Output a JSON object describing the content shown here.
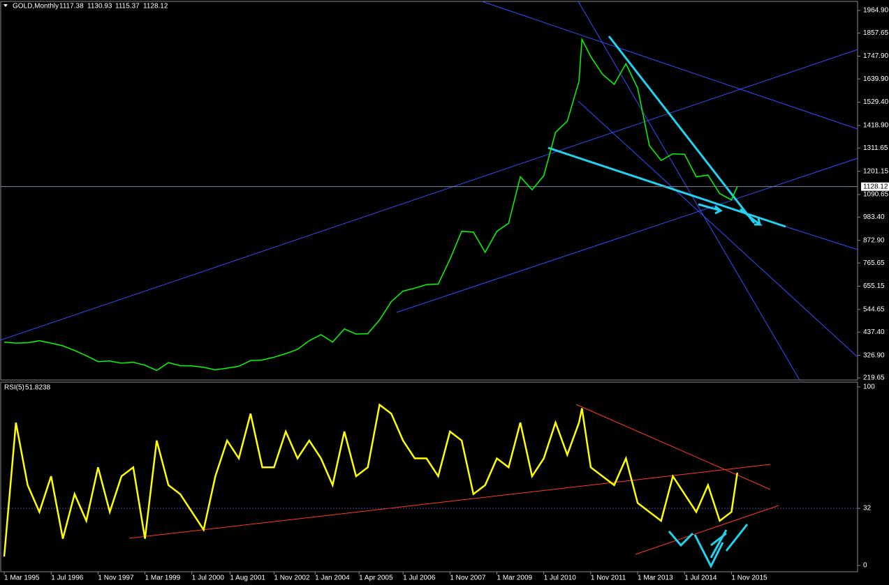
{
  "chart_data": [
    {
      "type": "line",
      "title": "GOLD,Monthly",
      "ohlc": [
        1117.38,
        1130.93,
        1115.37,
        1128.12
      ],
      "last_value": 1128.12,
      "x": [
        0,
        4,
        8,
        12,
        16,
        20,
        24,
        28,
        32,
        36,
        40,
        44,
        48,
        52,
        56,
        60,
        64,
        68,
        72,
        76,
        80,
        84,
        88,
        92,
        96,
        100,
        104,
        108,
        112,
        116,
        120,
        124,
        128,
        132,
        136,
        140,
        144,
        148,
        152,
        156,
        160,
        164,
        168,
        172,
        176,
        180,
        184,
        188,
        192,
        196,
        197,
        200,
        204,
        208,
        212,
        216,
        220,
        224,
        228,
        232,
        236,
        240,
        244,
        248,
        250
      ],
      "series": [
        {
          "name": "GOLD",
          "color": "#00ff00",
          "values": [
            390,
            385,
            387,
            396,
            385,
            372,
            350,
            325,
            297,
            300,
            290,
            294,
            280,
            255,
            292,
            278,
            277,
            270,
            258,
            266,
            275,
            302,
            305,
            318,
            335,
            355,
            396,
            425,
            390,
            452,
            428,
            430,
            495,
            582,
            632,
            646,
            663,
            665,
            783,
            916,
            912,
            816,
            916,
            954,
            1175,
            1113,
            1180,
            1386,
            1439,
            1628,
            1828,
            1746,
            1662,
            1614,
            1712,
            1596,
            1323,
            1253,
            1284,
            1282,
            1175,
            1183,
            1095,
            1065,
            1128
          ]
        }
      ],
      "xlim": [
        -1.2,
        291
      ],
      "ylim": [
        209.7,
        2008
      ],
      "yticks": [
        {
          "value": 1964.9,
          "label": "1964.90"
        },
        {
          "value": 1857.65,
          "label": "1857.65"
        },
        {
          "value": 1747.9,
          "label": "1747.90"
        },
        {
          "value": 1639.9,
          "label": "1639.90"
        },
        {
          "value": 1529.4,
          "label": "1529.40"
        },
        {
          "value": 1418.9,
          "label": "1418.90"
        },
        {
          "value": 1311.65,
          "label": "1311.65"
        },
        {
          "value": 1201.15,
          "label": "1201.15"
        },
        {
          "value": 1090.65,
          "label": "1090.65"
        },
        {
          "value": 983.4,
          "label": "983.40"
        },
        {
          "value": 872.9,
          "label": "872.90"
        },
        {
          "value": 765.65,
          "label": "765.65"
        },
        {
          "value": 655.15,
          "label": "655.15"
        },
        {
          "value": 544.65,
          "label": "544.65"
        },
        {
          "value": 437.4,
          "label": "437.40"
        },
        {
          "value": 326.9,
          "label": "326.90"
        },
        {
          "value": 219.65,
          "label": "219.65"
        }
      ]
    },
    {
      "type": "line",
      "title": "RSI(5)",
      "last_value": 51.8238,
      "x": [
        0,
        4,
        8,
        12,
        16,
        20,
        24,
        28,
        32,
        36,
        40,
        44,
        48,
        52,
        56,
        60,
        64,
        68,
        72,
        76,
        80,
        84,
        88,
        92,
        96,
        100,
        104,
        108,
        112,
        116,
        120,
        124,
        128,
        132,
        136,
        140,
        144,
        148,
        152,
        156,
        160,
        164,
        168,
        172,
        176,
        180,
        184,
        188,
        192,
        196,
        197,
        200,
        204,
        208,
        212,
        216,
        220,
        224,
        228,
        232,
        236,
        240,
        244,
        248,
        250
      ],
      "series": [
        {
          "name": "RSI",
          "color": "#ffff00",
          "values": [
            5,
            80,
            45,
            30,
            50,
            15,
            40,
            25,
            55,
            30,
            50,
            55,
            15,
            70,
            45,
            40,
            30,
            20,
            50,
            70,
            60,
            85,
            55,
            55,
            75,
            60,
            70,
            60,
            45,
            75,
            50,
            55,
            90,
            85,
            70,
            60,
            60,
            50,
            75,
            70,
            40,
            45,
            60,
            55,
            80,
            50,
            60,
            80,
            62,
            80,
            88,
            55,
            50,
            45,
            60,
            35,
            30,
            25,
            50,
            40,
            30,
            45,
            25,
            30,
            52
          ]
        }
      ],
      "xlim": [
        -1.2,
        291
      ],
      "ylim": [
        -3.5,
        102.7
      ],
      "yticks": [
        100,
        32,
        0
      ],
      "level": 32,
      "xticks": [
        {
          "value": 0,
          "label": "1 Mar 1995"
        },
        {
          "value": 16,
          "label": "1 Jul 1996"
        },
        {
          "value": 32,
          "label": "1 Nov 1997"
        },
        {
          "value": 48,
          "label": "1 Mar 1999"
        },
        {
          "value": 64,
          "label": "1 Jul 2000"
        },
        {
          "value": 77,
          "label": "1 Aug 2001"
        },
        {
          "value": 92,
          "label": "1 Nov 2002"
        },
        {
          "value": 106,
          "label": "1 Jan 2004"
        },
        {
          "value": 121,
          "label": "1 Apr 2005"
        },
        {
          "value": 136,
          "label": "1 Jul 2006"
        },
        {
          "value": 152,
          "label": "1 Nov 2007"
        },
        {
          "value": 168,
          "label": "1 Mar 2009"
        },
        {
          "value": 184,
          "label": "1 Jul 2010"
        },
        {
          "value": 200,
          "label": "1 Nov 2011"
        },
        {
          "value": 216,
          "label": "1 Mar 2013"
        },
        {
          "value": 232,
          "label": "1 Jul 2014"
        },
        {
          "value": 248,
          "label": "1 Nov 2015"
        }
      ]
    }
  ]
}
